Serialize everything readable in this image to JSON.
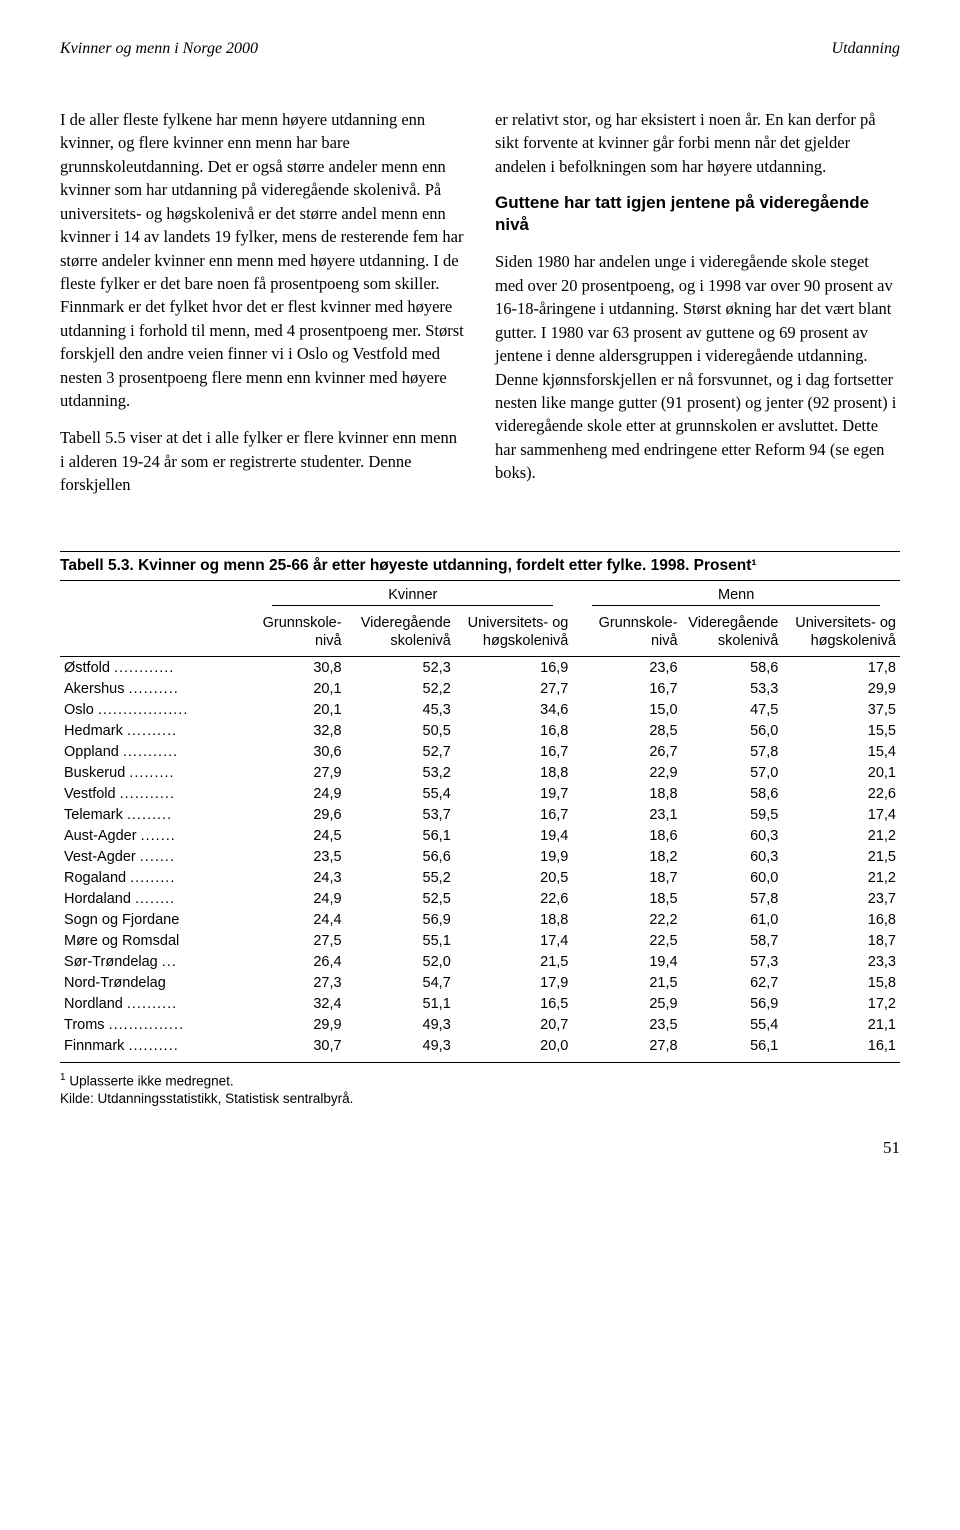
{
  "header": {
    "left": "Kvinner og menn i Norge 2000",
    "right": "Utdanning"
  },
  "body": {
    "col1_p1": "I de aller fleste fylkene har menn høyere utdanning enn kvinner, og flere kvinner enn menn har bare grunnskoleutdanning. Det er også større andeler menn enn kvinner som har utdanning på videregående skolenivå. På universitets- og høgskolenivå er det større andel menn enn kvinner i 14 av landets 19 fylker, mens de resterende fem har større andeler kvinner enn menn med høyere utdanning. I de fleste fylker er det bare noen få prosentpoeng som skiller. Finnmark er det fylket hvor det er flest kvinner med høyere utdanning i forhold til menn, med 4 prosentpoeng mer. Størst forskjell den andre veien finner vi i Oslo og Vestfold med nesten 3 prosentpoeng flere menn enn kvinner med høyere utdanning.",
    "col1_p2": "Tabell 5.5 viser at det i alle fylker er flere kvinner enn menn i alderen 19-24 år som er registrerte studenter. Denne forskjellen",
    "col2_p1": "er relativt stor, og har eksistert i noen år. En kan derfor på sikt forvente at kvinner går forbi menn når det gjelder andelen i befolkningen som har høyere utdanning.",
    "col2_h": "Guttene har tatt igjen jentene på videregående nivå",
    "col2_p2": "Siden 1980 har andelen unge i videregående skole steget med over 20 prosentpoeng, og i 1998 var over 90 prosent av 16-18-åringene i utdanning. Størst økning har det vært blant gutter. I 1980 var 63 prosent av guttene og 69 prosent av jentene i denne aldersgruppen i videregående utdanning. Denne kjønnsforskjellen er nå forsvunnet, og i dag fortsetter nesten like mange gutter (91 prosent) og jenter (92 prosent) i videregående skole etter at grunnskolen er avsluttet. Dette har sammenheng med endringene etter Reform 94 (se egen boks)."
  },
  "table": {
    "caption": "Tabell 5.3. Kvinner og menn 25-66 år etter høyeste utdanning, fordelt etter fylke. 1998. Prosent¹",
    "group_labels": {
      "kvinner": "Kvinner",
      "menn": "Menn"
    },
    "sub_headers": {
      "c1a": "Grunnskole-",
      "c1b": "nivå",
      "c2a": "Videregående",
      "c2b": "skolenivå",
      "c3a": "Universitets- og",
      "c3b": "høgskolenivå",
      "c4a": "Grunnskole-",
      "c4b": "nivå",
      "c5a": "Videregående",
      "c5b": "skolenivå",
      "c6a": "Universitets- og",
      "c6b": "høgskolenivå"
    },
    "rows": [
      {
        "label": "Østfold",
        "dots": "............",
        "v": [
          "30,8",
          "52,3",
          "16,9",
          "23,6",
          "58,6",
          "17,8"
        ]
      },
      {
        "label": "Akershus",
        "dots": "..........",
        "v": [
          "20,1",
          "52,2",
          "27,7",
          "16,7",
          "53,3",
          "29,9"
        ]
      },
      {
        "label": "Oslo",
        "dots": "..................",
        "v": [
          "20,1",
          "45,3",
          "34,6",
          "15,0",
          "47,5",
          "37,5"
        ]
      },
      {
        "label": "Hedmark",
        "dots": "..........",
        "v": [
          "32,8",
          "50,5",
          "16,8",
          "28,5",
          "56,0",
          "15,5"
        ]
      },
      {
        "label": "Oppland",
        "dots": "...........",
        "v": [
          "30,6",
          "52,7",
          "16,7",
          "26,7",
          "57,8",
          "15,4"
        ]
      },
      {
        "label": "Buskerud",
        "dots": ".........",
        "v": [
          "27,9",
          "53,2",
          "18,8",
          "22,9",
          "57,0",
          "20,1"
        ]
      },
      {
        "label": "Vestfold",
        "dots": "...........",
        "v": [
          "24,9",
          "55,4",
          "19,7",
          "18,8",
          "58,6",
          "22,6"
        ]
      },
      {
        "label": "Telemark",
        "dots": ".........",
        "v": [
          "29,6",
          "53,7",
          "16,7",
          "23,1",
          "59,5",
          "17,4"
        ]
      },
      {
        "label": "Aust-Agder",
        "dots": ".......",
        "v": [
          "24,5",
          "56,1",
          "19,4",
          "18,6",
          "60,3",
          "21,2"
        ]
      },
      {
        "label": "Vest-Agder",
        "dots": ".......",
        "v": [
          "23,5",
          "56,6",
          "19,9",
          "18,2",
          "60,3",
          "21,5"
        ]
      },
      {
        "label": "Rogaland",
        "dots": ".........",
        "v": [
          "24,3",
          "55,2",
          "20,5",
          "18,7",
          "60,0",
          "21,2"
        ]
      },
      {
        "label": "Hordaland",
        "dots": "........",
        "v": [
          "24,9",
          "52,5",
          "22,6",
          "18,5",
          "57,8",
          "23,7"
        ]
      },
      {
        "label": "Sogn og Fjordane",
        "dots": "",
        "v": [
          "24,4",
          "56,9",
          "18,8",
          "22,2",
          "61,0",
          "16,8"
        ]
      },
      {
        "label": "Møre og Romsdal",
        "dots": "",
        "v": [
          "27,5",
          "55,1",
          "17,4",
          "22,5",
          "58,7",
          "18,7"
        ]
      },
      {
        "label": "Sør-Trøndelag",
        "dots": "...",
        "v": [
          "26,4",
          "52,0",
          "21,5",
          "19,4",
          "57,3",
          "23,3"
        ]
      },
      {
        "label": "Nord-Trøndelag",
        "dots": "",
        "v": [
          "27,3",
          "54,7",
          "17,9",
          "21,5",
          "62,7",
          "15,8"
        ]
      },
      {
        "label": "Nordland",
        "dots": "..........",
        "v": [
          "32,4",
          "51,1",
          "16,5",
          "25,9",
          "56,9",
          "17,2"
        ]
      },
      {
        "label": "Troms",
        "dots": "...............",
        "v": [
          "29,9",
          "49,3",
          "20,7",
          "23,5",
          "55,4",
          "21,1"
        ]
      },
      {
        "label": "Finnmark",
        "dots": "..........",
        "v": [
          "30,7",
          "49,3",
          "20,0",
          "27,8",
          "56,1",
          "16,1"
        ]
      }
    ],
    "col_widths": [
      "23%",
      "11%",
      "13%",
      "14%",
      "13%",
      "12%",
      "14%"
    ]
  },
  "footnotes": {
    "n1": "Uplasserte ikke medregnet.",
    "source": "Kilde: Utdanningsstatistikk, Statistisk sentralbyrå."
  },
  "page_number": "51"
}
